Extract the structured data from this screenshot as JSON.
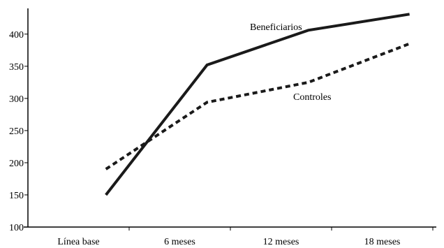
{
  "chart_data": {
    "type": "line",
    "title": "",
    "xlabel": "",
    "ylabel": "",
    "categories": [
      "Línea base",
      "6 meses",
      "12 meses",
      "18 meses"
    ],
    "ylim": [
      100,
      440
    ],
    "yticks": [
      100,
      150,
      200,
      250,
      300,
      350,
      400
    ],
    "grid": false,
    "series": [
      {
        "name": "Beneficiarios",
        "values": [
          150,
          352,
          406,
          431
        ],
        "style": "solid",
        "color": "#1a1a1a"
      },
      {
        "name": "Controles",
        "values": [
          190,
          294,
          325,
          385
        ],
        "style": "dashed",
        "color": "#1a1a1a"
      }
    ]
  }
}
